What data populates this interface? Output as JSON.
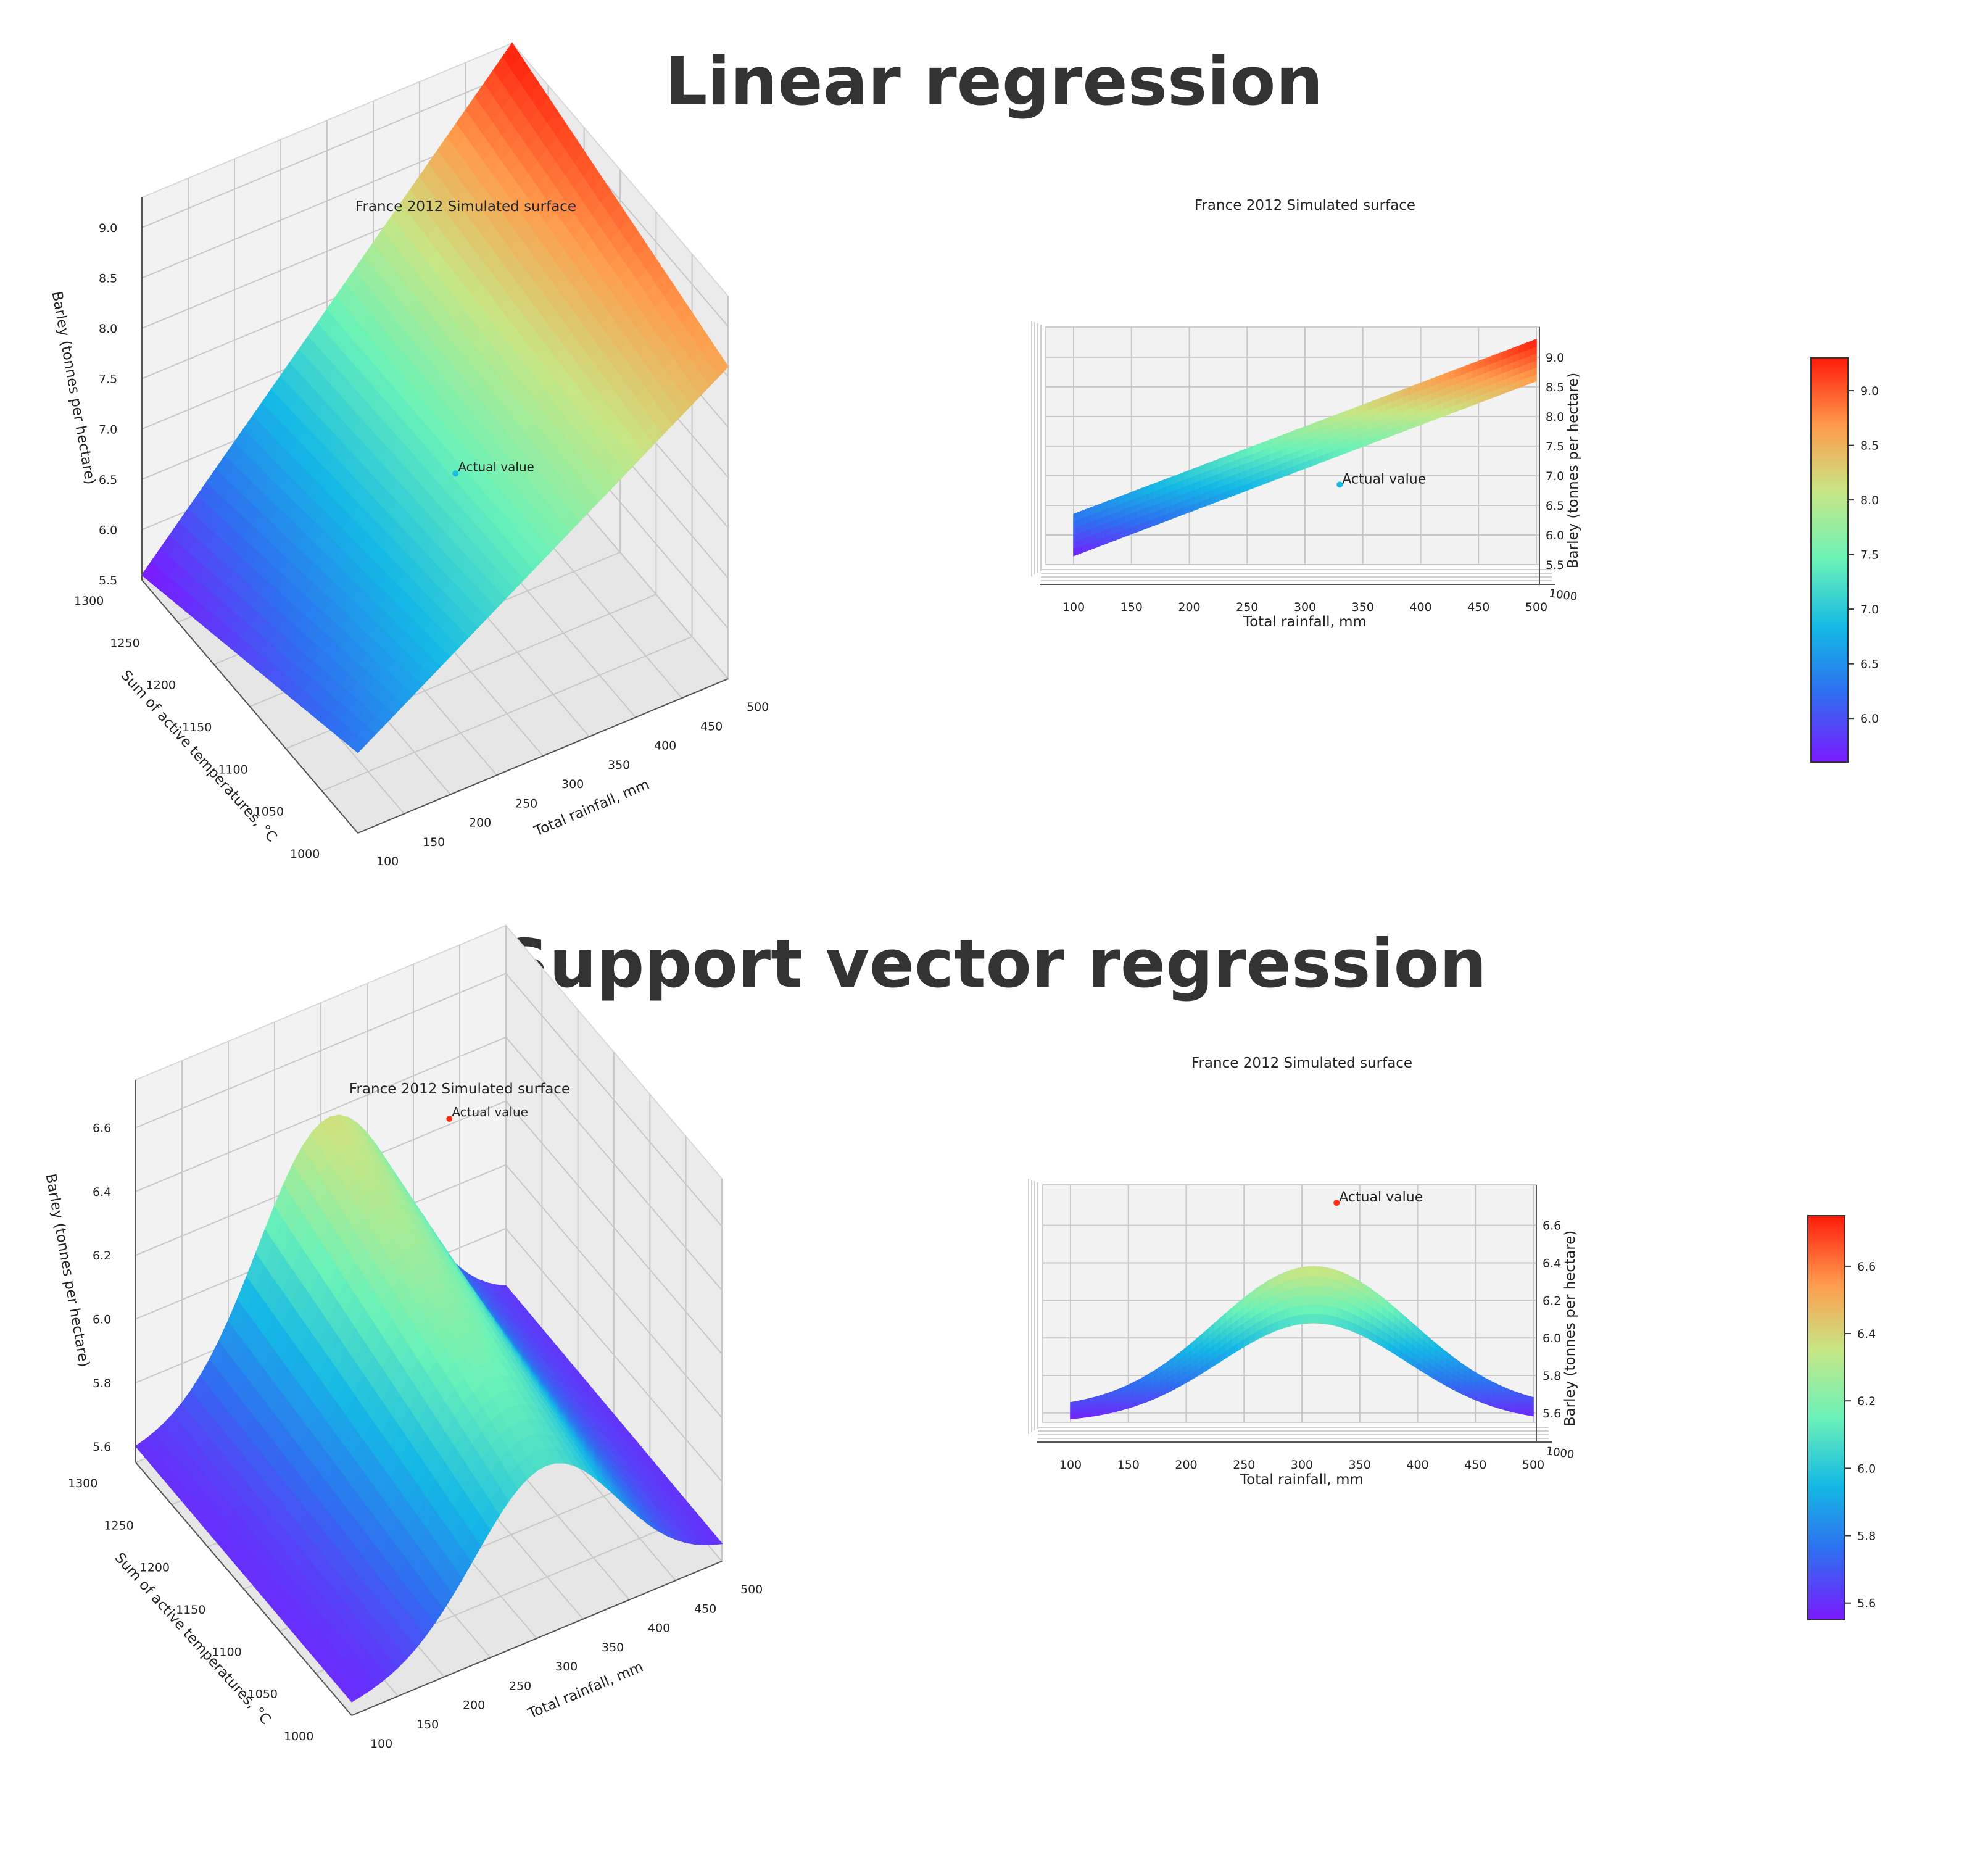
{
  "sections": {
    "linear": "Linear regression",
    "svr": "Support vector regression"
  },
  "chart_data": [
    {
      "type": "surface3d",
      "view": "perspective",
      "title": "France 2012 Simulated surface",
      "xlabel": "Total rainfall, mm",
      "ylabel": "Sum of active temperatures, °C",
      "zlabel": "Barley (tonnes per hectare)",
      "x_ticks": [
        "100",
        "150",
        "200",
        "250",
        "300",
        "350",
        "400",
        "450",
        "500"
      ],
      "y_ticks": [
        "1000",
        "1050",
        "1100",
        "1150",
        "1200",
        "1250",
        "1300"
      ],
      "z_ticks": [
        "5.5",
        "6.0",
        "6.5",
        "7.0",
        "7.5",
        "8.0",
        "8.5",
        "9.0"
      ],
      "xlim": [
        100,
        500
      ],
      "ylim": [
        1000,
        1300
      ],
      "zlim": [
        5.5,
        9.3
      ],
      "corner_values": {
        "x100_y1000": 6.3,
        "x100_y1300": 5.55,
        "x500_y1000": 8.6,
        "x500_y1300": 9.3
      },
      "actual_point": {
        "x": 330,
        "y": 1160,
        "z": 6.85,
        "label": "Actual value"
      }
    },
    {
      "type": "surface3d",
      "view": "side",
      "title": "France 2012 Simulated surface",
      "xlabel": "Total rainfall, mm",
      "zlabel": "Barley (tonnes per hectare)",
      "x_ticks": [
        "100",
        "150",
        "200",
        "250",
        "300",
        "350",
        "400",
        "450",
        "500"
      ],
      "y_ticks": [
        "1000"
      ],
      "z_ticks": [
        "5.5",
        "6.0",
        "6.5",
        "7.0",
        "7.5",
        "8.0",
        "8.5",
        "9.0"
      ],
      "xlim": [
        100,
        500
      ],
      "zlim": [
        5.5,
        9.3
      ],
      "band": {
        "x": [
          100,
          500
        ],
        "low": [
          5.65,
          8.6
        ],
        "high": [
          6.35,
          9.3
        ]
      },
      "actual_point": {
        "x": 330,
        "z": 6.85,
        "label": "Actual value"
      },
      "colorbar": {
        "ticks": [
          "6.0",
          "6.5",
          "7.0",
          "7.5",
          "8.0",
          "8.5",
          "9.0"
        ],
        "range": [
          5.6,
          9.3
        ]
      }
    },
    {
      "type": "surface3d",
      "view": "perspective",
      "title": "France 2012 Simulated surface",
      "xlabel": "Total rainfall, mm",
      "ylabel": "Sum of active temperatures, °C",
      "zlabel": "Barley (tonnes per hectare)",
      "x_ticks": [
        "100",
        "150",
        "200",
        "250",
        "300",
        "350",
        "400",
        "450",
        "500"
      ],
      "y_ticks": [
        "1000",
        "1050",
        "1100",
        "1150",
        "1200",
        "1250",
        "1300"
      ],
      "z_ticks": [
        "5.6",
        "5.8",
        "6.0",
        "6.2",
        "6.4",
        "6.6"
      ],
      "xlim": [
        100,
        500
      ],
      "ylim": [
        1000,
        1300
      ],
      "zlim": [
        5.55,
        6.75
      ],
      "surface": {
        "peak_x": 310,
        "peak_at_y1000": 6.08,
        "peak_at_y1300": 6.38,
        "edge_value": 5.58
      },
      "actual_point": {
        "x": 330,
        "y": 1160,
        "z": 6.72,
        "label": "Actual value"
      }
    },
    {
      "type": "surface3d",
      "view": "side",
      "title": "France 2012 Simulated surface",
      "xlabel": "Total rainfall, mm",
      "zlabel": "Barley (tonnes per hectare)",
      "x_ticks": [
        "100",
        "150",
        "200",
        "250",
        "300",
        "350",
        "400",
        "450",
        "500"
      ],
      "y_ticks": [
        "1000"
      ],
      "z_ticks": [
        "5.6",
        "5.8",
        "6.0",
        "6.2",
        "6.4",
        "6.6"
      ],
      "xlim": [
        100,
        500
      ],
      "zlim": [
        5.55,
        6.75
      ],
      "band": {
        "peak_x": 310,
        "low_peak": 6.08,
        "high_peak": 6.38,
        "edge_low": 5.55,
        "edge_high": 5.62
      },
      "actual_point": {
        "x": 330,
        "z": 6.72,
        "label": "Actual value"
      },
      "colorbar": {
        "ticks": [
          "5.6",
          "5.8",
          "6.0",
          "6.2",
          "6.4",
          "6.6"
        ],
        "range": [
          5.55,
          6.75
        ]
      }
    }
  ]
}
